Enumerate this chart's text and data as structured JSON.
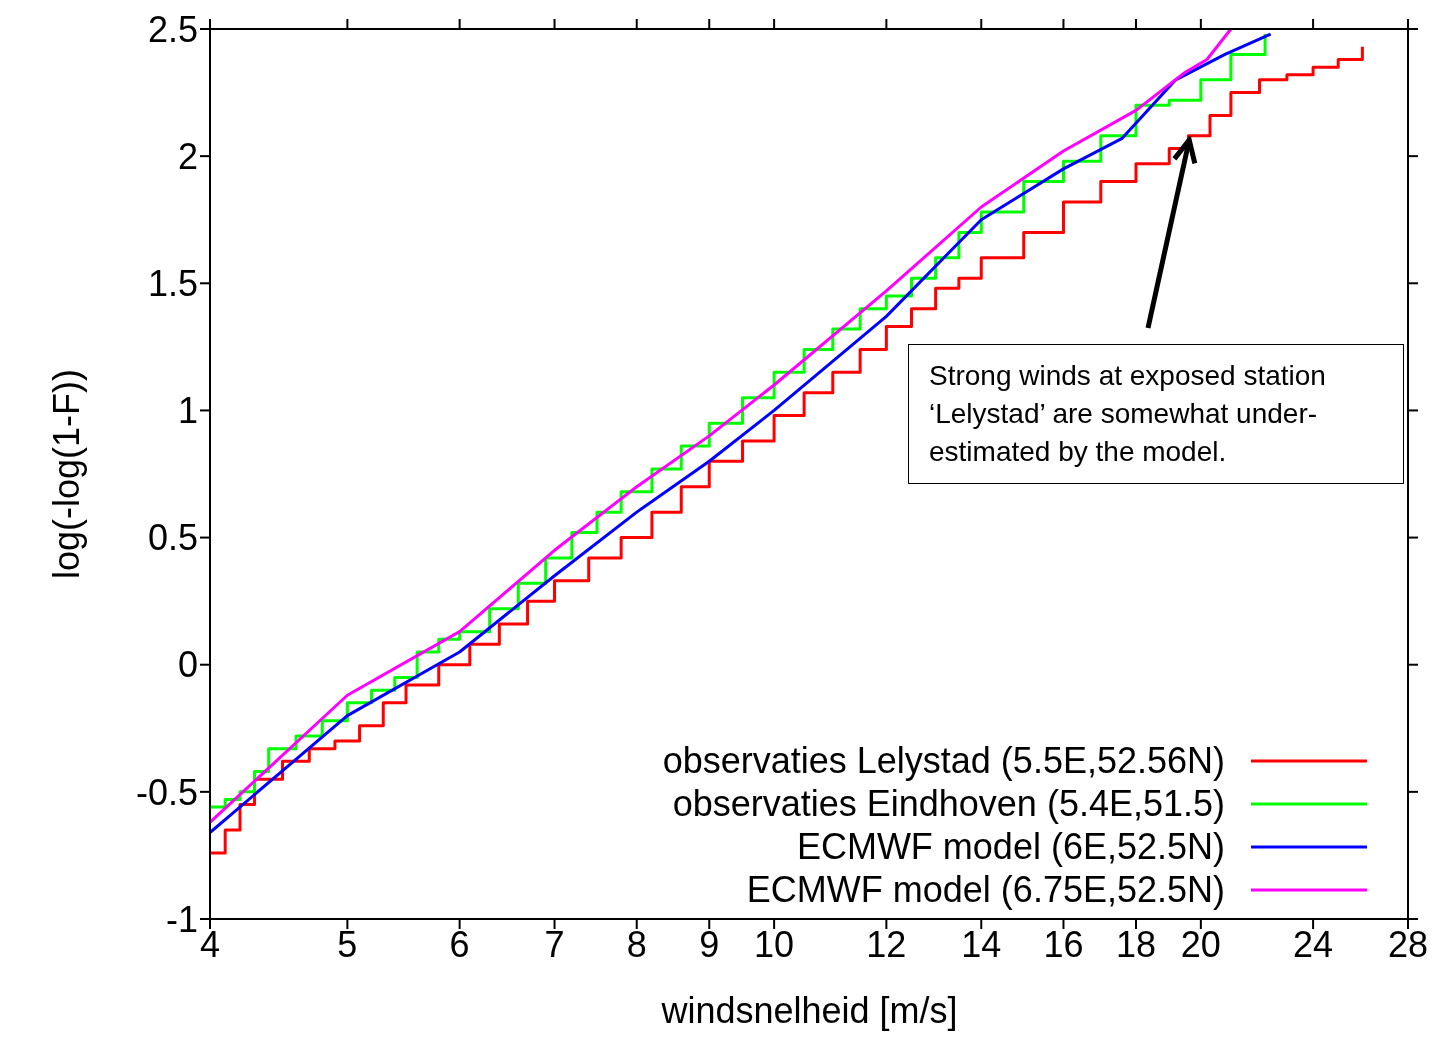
{
  "chart_data": {
    "type": "line",
    "xlabel": "windsnelheid [m/s]",
    "ylabel": "log(-log(1-F))",
    "log": "x",
    "xlim": [
      4,
      28
    ],
    "xticks": [
      4,
      5,
      6,
      7,
      8,
      9,
      10,
      12,
      14,
      16,
      18,
      20,
      24,
      28
    ],
    "ylim": [
      -1,
      2.5
    ],
    "yticks": [
      -1,
      -0.5,
      0,
      0.5,
      1,
      1.5,
      2,
      2.5
    ],
    "legend": "bottom right",
    "grid": false,
    "annotations": [
      {
        "text": "Strong winds at exposed station ‘Lelystad’ are  somewhat under-estimated by the model.",
        "x": 19.6,
        "y": 2.06
      }
    ],
    "series": [
      {
        "name": "observaties Lelystad (5.5E,52.56N)",
        "type": "step",
        "color": "#ff0000",
        "x": [
          4,
          4.1,
          4.2,
          4.3,
          4.5,
          4.7,
          4.9,
          5.1,
          5.3,
          5.5,
          5.8,
          6.1,
          6.4,
          6.7,
          7,
          7.4,
          7.8,
          8.2,
          8.6,
          9,
          9.5,
          10,
          10.5,
          11,
          11.5,
          12,
          12.5,
          13,
          13.5,
          14,
          15,
          16,
          17,
          18,
          19,
          19.6,
          20.3,
          21,
          22,
          23,
          24,
          25,
          26
        ],
        "values": [
          -0.74,
          -0.65,
          -0.55,
          -0.45,
          -0.38,
          -0.33,
          -0.3,
          -0.24,
          -0.15,
          -0.08,
          0,
          0.08,
          0.16,
          0.25,
          0.33,
          0.42,
          0.5,
          0.6,
          0.7,
          0.8,
          0.88,
          0.98,
          1.07,
          1.15,
          1.24,
          1.33,
          1.4,
          1.48,
          1.52,
          1.6,
          1.7,
          1.82,
          1.9,
          1.97,
          2.03,
          2.08,
          2.16,
          2.25,
          2.3,
          2.32,
          2.35,
          2.38,
          2.43
        ]
      },
      {
        "name": "observaties Eindhoven (5.4E,51.5)",
        "type": "step",
        "color": "#00ff00",
        "x": [
          4,
          4.1,
          4.2,
          4.3,
          4.4,
          4.6,
          4.8,
          5,
          5.2,
          5.4,
          5.6,
          5.8,
          6,
          6.3,
          6.6,
          6.9,
          7.2,
          7.5,
          7.8,
          8.2,
          8.6,
          9,
          9.5,
          10,
          10.5,
          11,
          11.5,
          12,
          12.5,
          13,
          13.5,
          14,
          15,
          16,
          17,
          18,
          19,
          20,
          21,
          22.2
        ],
        "values": [
          -0.56,
          -0.53,
          -0.5,
          -0.42,
          -0.33,
          -0.28,
          -0.22,
          -0.15,
          -0.1,
          -0.05,
          0.05,
          0.1,
          0.13,
          0.22,
          0.32,
          0.42,
          0.52,
          0.6,
          0.68,
          0.77,
          0.86,
          0.95,
          1.05,
          1.15,
          1.24,
          1.32,
          1.4,
          1.45,
          1.52,
          1.6,
          1.7,
          1.78,
          1.9,
          1.98,
          2.08,
          2.2,
          2.22,
          2.3,
          2.4,
          2.48
        ]
      },
      {
        "name": "ECMWF model (6E,52.5N)",
        "type": "line",
        "color": "#0000ff",
        "x": [
          4,
          5,
          6,
          7,
          8,
          9,
          10,
          12,
          14,
          16,
          17.6,
          19.2,
          20.8,
          22.4
        ],
        "values": [
          -0.66,
          -0.2,
          0.05,
          0.35,
          0.6,
          0.8,
          1.0,
          1.37,
          1.75,
          1.95,
          2.07,
          2.3,
          2.4,
          2.48
        ]
      },
      {
        "name": "ECMWF model (6.75E,52.5N)",
        "type": "line",
        "color": "#ff00ff",
        "x": [
          4,
          5,
          6,
          7,
          8,
          9,
          10,
          12,
          14,
          16,
          18,
          19.5,
          20.2,
          21
        ],
        "values": [
          -0.62,
          -0.12,
          0.13,
          0.45,
          0.7,
          0.9,
          1.1,
          1.47,
          1.8,
          2.02,
          2.18,
          2.33,
          2.38,
          2.5
        ]
      }
    ]
  }
}
